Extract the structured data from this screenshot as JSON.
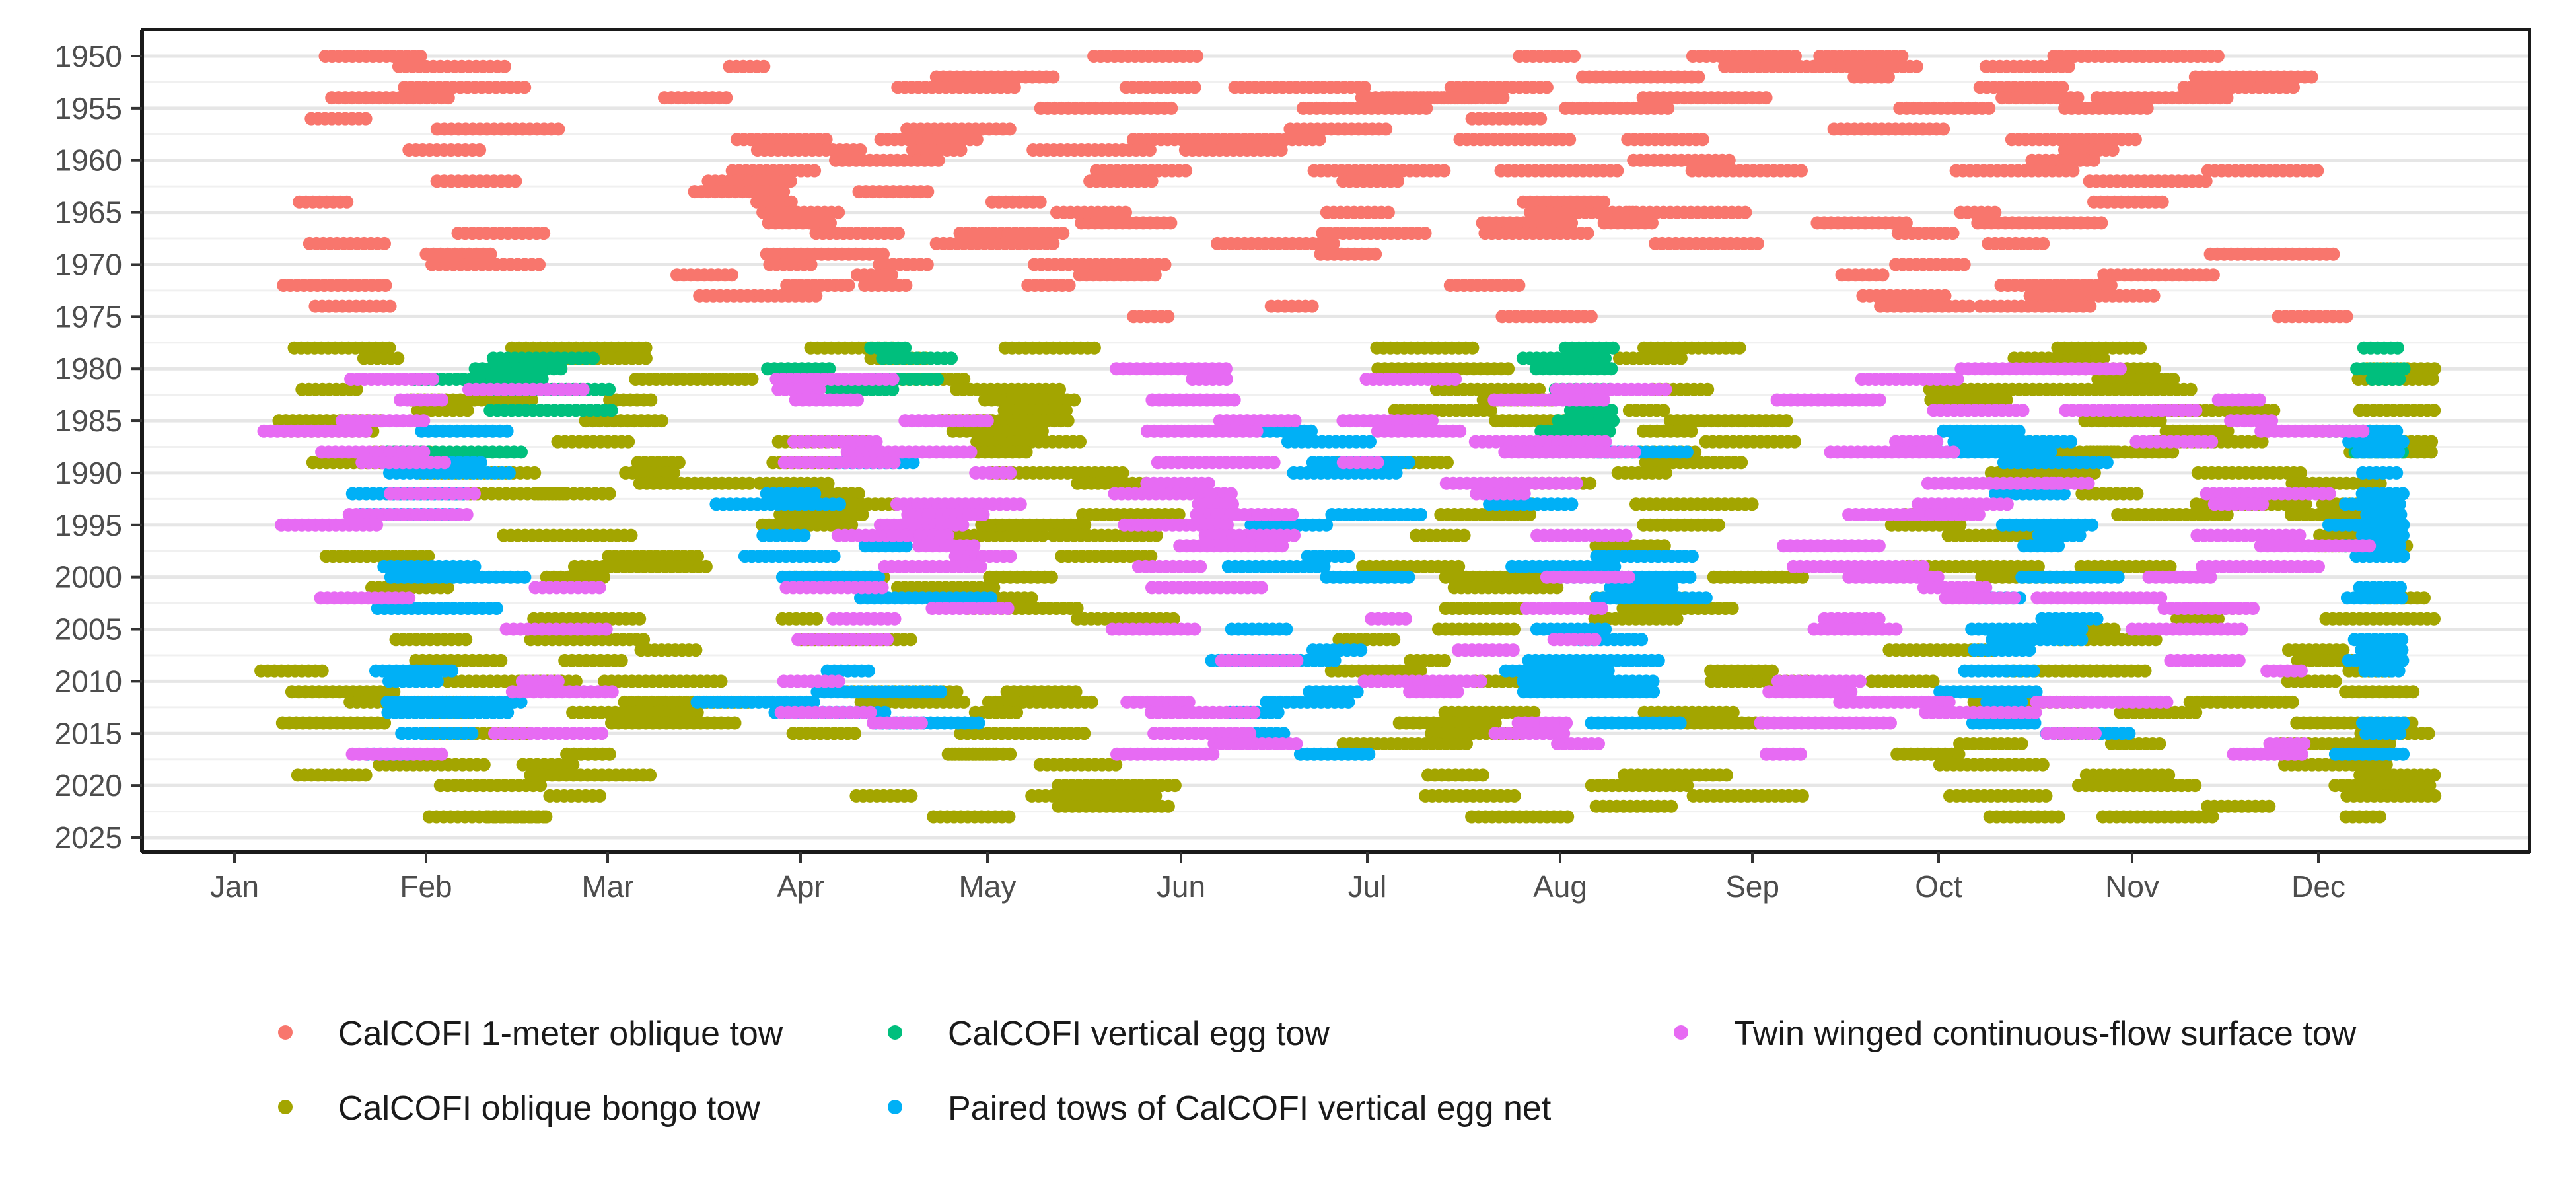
{
  "chart_data": {
    "type": "scatter",
    "title": "",
    "xlabel": "",
    "ylabel": "",
    "x_axis": {
      "type": "day-of-year",
      "range": [
        "Jan 1",
        "Dec 31"
      ],
      "tick_labels": [
        "Jan",
        "Feb",
        "Mar",
        "Apr",
        "May",
        "Jun",
        "Jul",
        "Aug",
        "Sep",
        "Oct",
        "Nov",
        "Dec"
      ]
    },
    "y_axis": {
      "reversed": true,
      "range": [
        1950,
        2025
      ],
      "tick_labels": [
        "1950",
        "1955",
        "1960",
        "1965",
        "1970",
        "1975",
        "1980",
        "1985",
        "1990",
        "1995",
        "2000",
        "2005",
        "2010",
        "2015",
        "2020",
        "2025"
      ]
    },
    "grid": true,
    "legend_position": "bottom",
    "series": [
      {
        "name": "CalCOFI 1-meter oblique tow",
        "color": "#F8766D",
        "years": [
          1950,
          1975
        ],
        "segments": [
          [
            "01-06",
            "02-28"
          ],
          [
            "03-10",
            "04-20"
          ],
          [
            "04-01",
            "05-15"
          ],
          [
            "05-01",
            "06-10"
          ],
          [
            "06-01",
            "07-20"
          ],
          [
            "07-01",
            "08-15"
          ],
          [
            "08-01",
            "09-15"
          ],
          [
            "09-10",
            "10-10"
          ],
          [
            "10-01",
            "11-05"
          ],
          [
            "10-25",
            "12-20"
          ]
        ]
      },
      {
        "name": "CalCOFI oblique bongo tow",
        "color": "#A3A500",
        "years": [
          1978,
          2023
        ],
        "segments": [
          [
            "01-05",
            "02-25"
          ],
          [
            "02-10",
            "03-25"
          ],
          [
            "03-25",
            "05-20"
          ],
          [
            "04-25",
            "06-01"
          ],
          [
            "06-25",
            "08-10"
          ],
          [
            "08-05",
            "09-10"
          ],
          [
            "09-20",
            "10-30"
          ],
          [
            "10-20",
            "11-30"
          ],
          [
            "11-25",
            "12-20"
          ]
        ]
      },
      {
        "name": "CalCOFI vertical egg tow",
        "color": "#00BF7D",
        "years": [
          1978,
          1988
        ],
        "segments": [
          [
            "01-20",
            "03-10"
          ],
          [
            "03-25",
            "05-05"
          ],
          [
            "07-25",
            "08-10"
          ],
          [
            "12-05",
            "12-15"
          ]
        ]
      },
      {
        "name": "Paired tows of CalCOFI vertical egg net",
        "color": "#00B0F6",
        "years": [
          1986,
          2017
        ],
        "segments": [
          [
            "01-20",
            "02-20"
          ],
          [
            "03-15",
            "05-05"
          ],
          [
            "06-05",
            "07-10"
          ],
          [
            "07-20",
            "08-25"
          ],
          [
            "10-01",
            "11-01"
          ],
          [
            "12-01",
            "12-15"
          ]
        ]
      },
      {
        "name": "Twin winged continuous-flow surface tow",
        "color": "#E76BF3",
        "years": [
          1980,
          2017
        ],
        "segments": [
          [
            "01-05",
            "03-20"
          ],
          [
            "03-25",
            "05-25"
          ],
          [
            "05-20",
            "06-20"
          ],
          [
            "06-25",
            "08-25"
          ],
          [
            "09-01",
            "10-30"
          ],
          [
            "10-15",
            "12-20"
          ]
        ]
      }
    ]
  }
}
